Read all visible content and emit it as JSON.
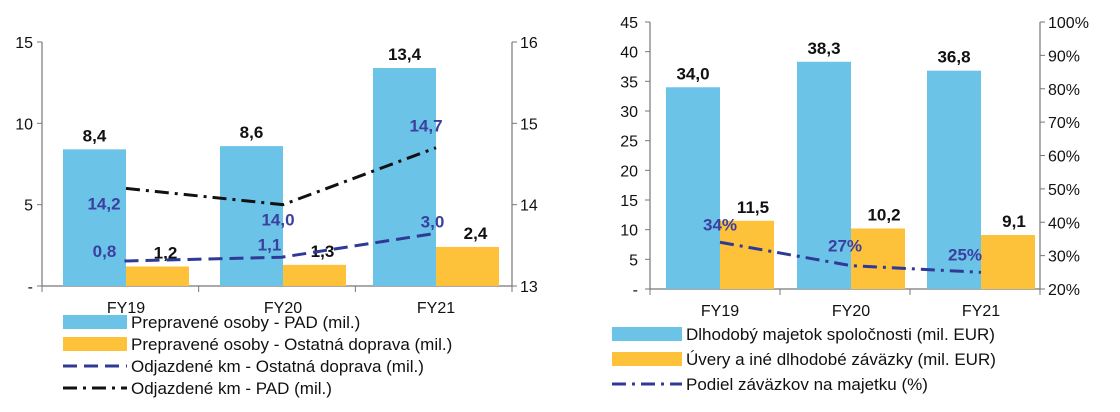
{
  "colors": {
    "blue": "#6cc3e8",
    "orange": "#fdc13a",
    "navy": "#2f3a97",
    "black": "#111111",
    "axis": "#777777"
  },
  "chart_data": [
    {
      "type": "bar",
      "categories": [
        "FY19",
        "FY20",
        "FY21"
      ],
      "left_axis": {
        "ylim": [
          0,
          15
        ],
        "ticks": [
          "-",
          "5",
          "10",
          "15"
        ]
      },
      "right_axis": {
        "ylim": [
          13,
          16
        ],
        "ticks": [
          "13",
          "14",
          "15",
          "16"
        ]
      },
      "series": [
        {
          "name": "Prepravené osoby - PAD (mil.)",
          "kind": "bar",
          "axis": "left",
          "values": [
            8.4,
            8.6,
            13.4
          ],
          "labels": [
            "8,4",
            "8,6",
            "13,4"
          ],
          "color": "#6cc3e8"
        },
        {
          "name": "Prepravené osoby - Ostatná doprava (mil.)",
          "kind": "bar",
          "axis": "left",
          "values": [
            1.2,
            1.3,
            2.4
          ],
          "labels": [
            "1,2",
            "1,3",
            "2,4"
          ],
          "color": "#fdc13a"
        },
        {
          "name": "Odjazdené km - Ostatná doprava (mil.)",
          "kind": "line",
          "style": "dashed",
          "axis": "right",
          "values": [
            0.8,
            1.1,
            3.0
          ],
          "labels": [
            "0,8",
            "1,1",
            "3,0"
          ],
          "color": "#2f3a97"
        },
        {
          "name": "Odjazdené km - PAD (mil.)",
          "kind": "line",
          "style": "dashdot",
          "axis": "right",
          "values": [
            14.2,
            14.0,
            14.7
          ],
          "labels": [
            "14,2",
            "14,0",
            "14,7"
          ],
          "color": "#111111"
        }
      ]
    },
    {
      "type": "bar",
      "categories": [
        "FY19",
        "FY20",
        "FY21"
      ],
      "left_axis": {
        "ylim": [
          0,
          45
        ],
        "ticks": [
          "-",
          "5",
          "10",
          "15",
          "20",
          "25",
          "30",
          "35",
          "40",
          "45"
        ]
      },
      "right_axis": {
        "ylim": [
          20,
          100
        ],
        "ticks": [
          "20%",
          "30%",
          "40%",
          "50%",
          "60%",
          "70%",
          "80%",
          "90%",
          "100%"
        ]
      },
      "series": [
        {
          "name": "Dlhodobý majetok spoločnosti (mil. EUR)",
          "kind": "bar",
          "axis": "left",
          "values": [
            34.0,
            38.3,
            36.8
          ],
          "labels": [
            "34,0",
            "38,3",
            "36,8"
          ],
          "color": "#6cc3e8"
        },
        {
          "name": "Úvery a iné dlhodobé záväzky (mil. EUR)",
          "kind": "bar",
          "axis": "left",
          "values": [
            11.5,
            10.2,
            9.1
          ],
          "labels": [
            "11,5",
            "10,2",
            "9,1"
          ],
          "color": "#fdc13a"
        },
        {
          "name": "Podiel záväzkov na majetku (%)",
          "kind": "line",
          "style": "dashdot",
          "axis": "right",
          "values": [
            34,
            27,
            25
          ],
          "labels": [
            "34%",
            "27%",
            "25%"
          ],
          "color": "#2f3a97"
        }
      ]
    }
  ]
}
